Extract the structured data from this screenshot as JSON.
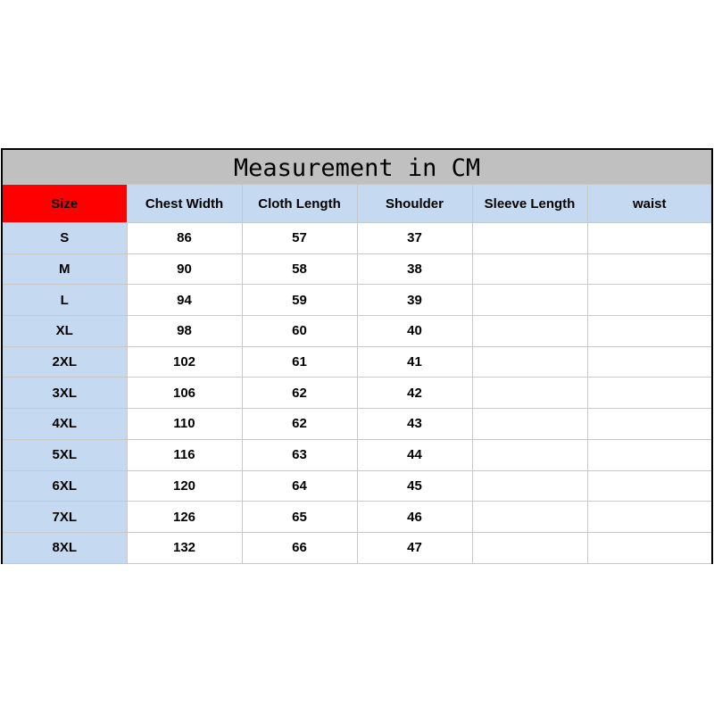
{
  "title": "Measurement in CM",
  "columns": [
    "Size",
    "Chest Width",
    "Cloth Length",
    "Shoulder",
    "Sleeve Length",
    "waist"
  ],
  "rows": [
    [
      "S",
      "86",
      "57",
      "37",
      "",
      ""
    ],
    [
      "M",
      "90",
      "58",
      "38",
      "",
      ""
    ],
    [
      "L",
      "94",
      "59",
      "39",
      "",
      ""
    ],
    [
      "XL",
      "98",
      "60",
      "40",
      "",
      ""
    ],
    [
      "2XL",
      "102",
      "61",
      "41",
      "",
      ""
    ],
    [
      "3XL",
      "106",
      "62",
      "42",
      "",
      ""
    ],
    [
      "4XL",
      "110",
      "62",
      "43",
      "",
      ""
    ],
    [
      "5XL",
      "116",
      "63",
      "44",
      "",
      ""
    ],
    [
      "6XL",
      "120",
      "64",
      "45",
      "",
      ""
    ],
    [
      "7XL",
      "126",
      "65",
      "46",
      "",
      ""
    ],
    [
      "8XL",
      "132",
      "66",
      "47",
      "",
      ""
    ]
  ],
  "colors": {
    "title_bg": "#c0c0c0",
    "size_header_bg": "#ff0000",
    "header_bg": "#c5d9f1"
  }
}
